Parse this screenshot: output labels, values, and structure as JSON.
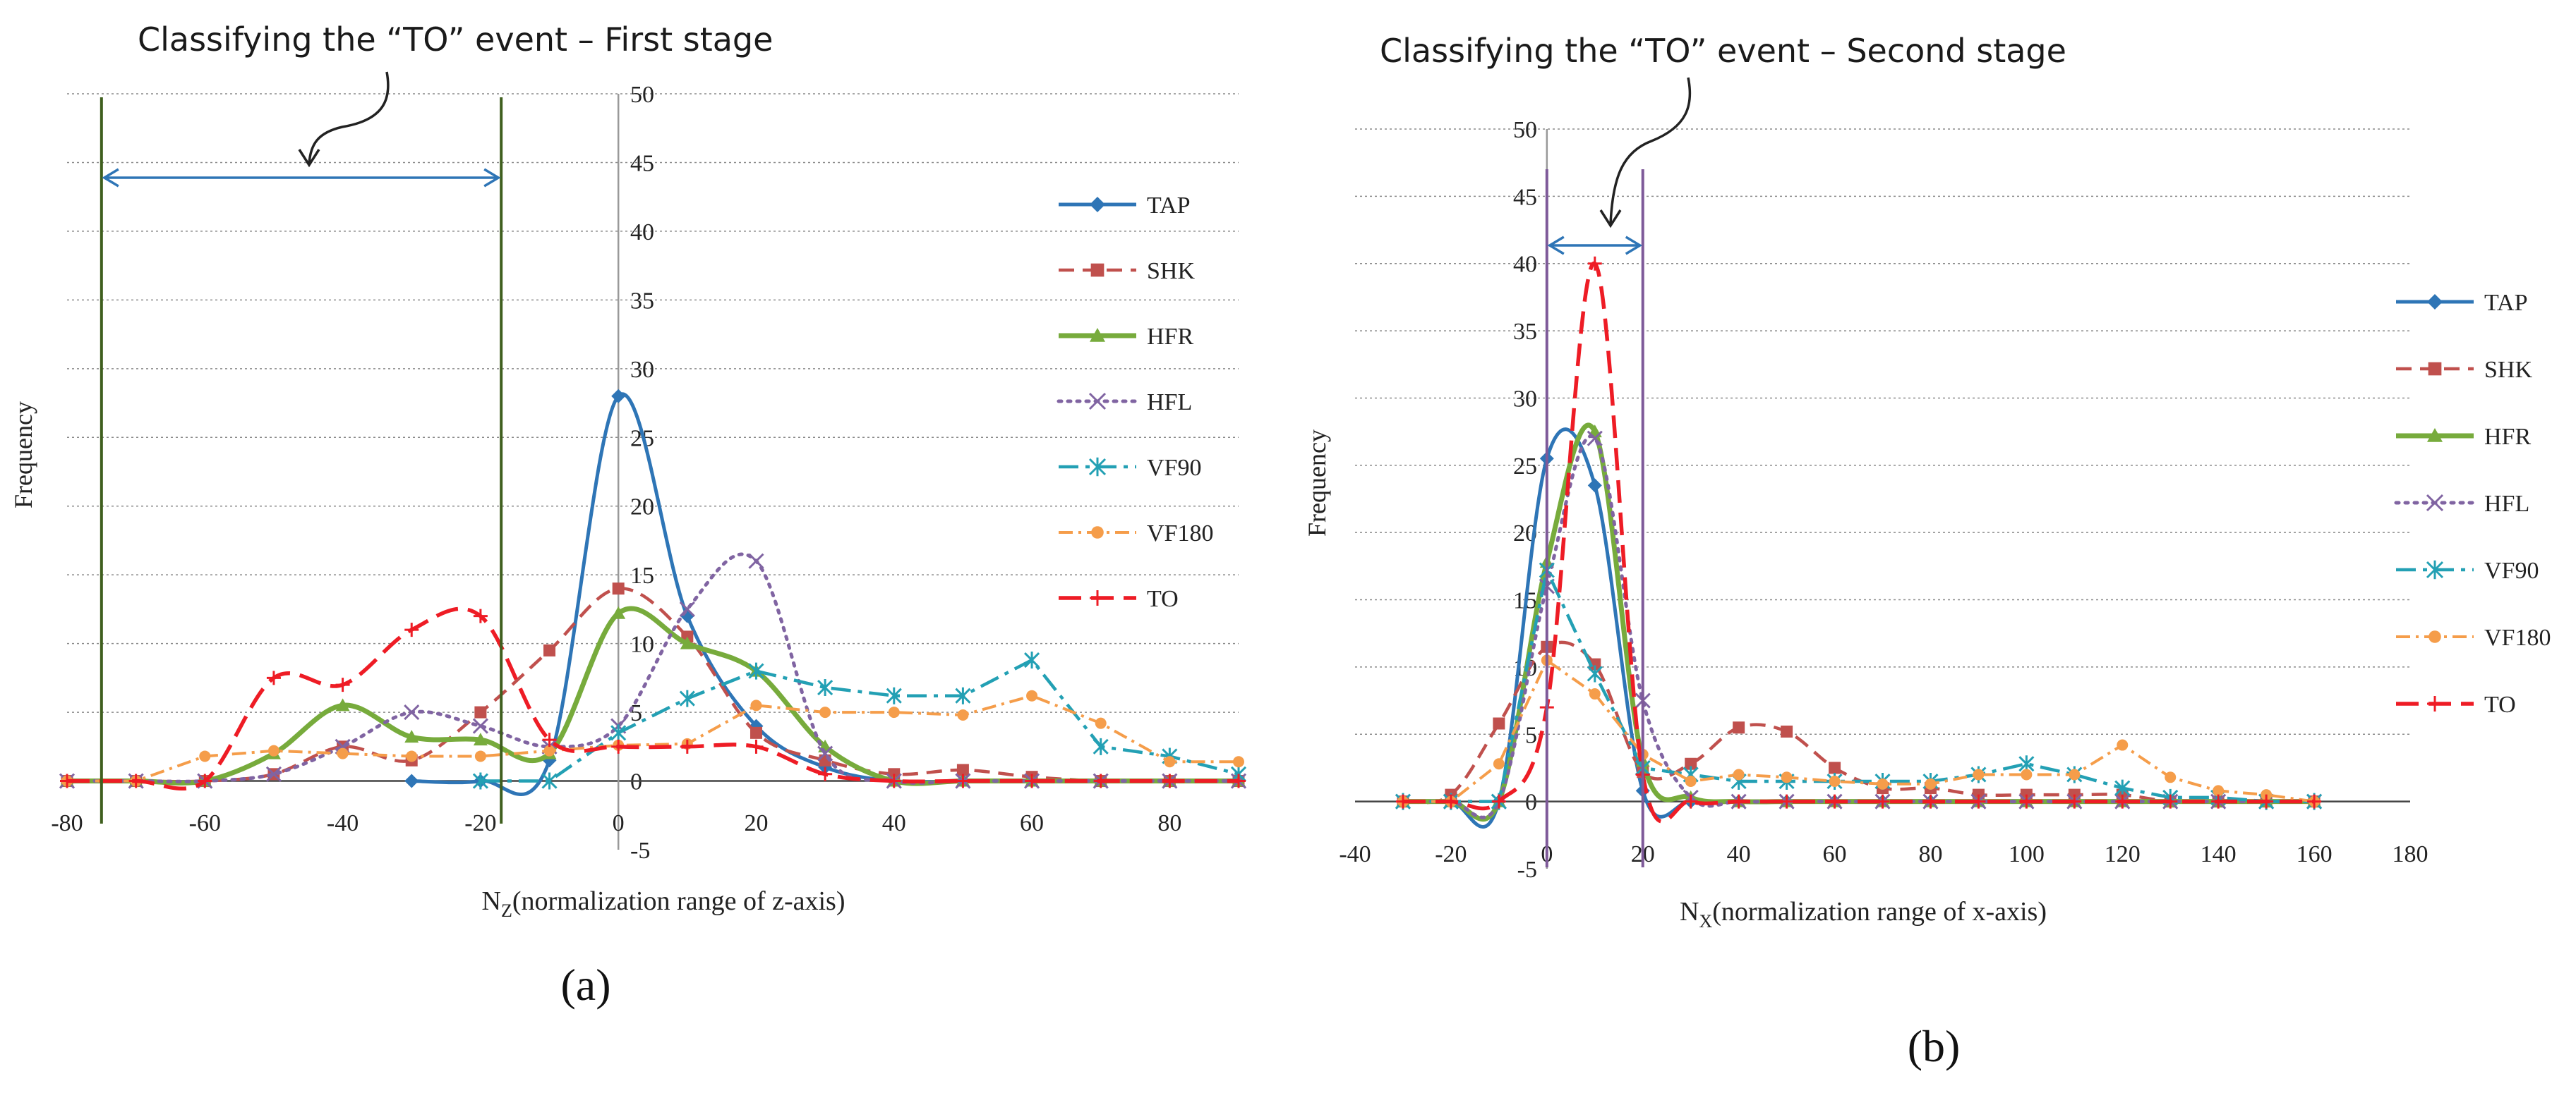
{
  "figure": {
    "panel_a_label": "(a)",
    "panel_b_label": "(b)",
    "stage_a_annotation": "Classifying the “TO” event – First stage",
    "stage_b_annotation": "Classifying the “TO” event – Second stage"
  },
  "colors": {
    "TAP": "#2e75b6",
    "SHK": "#c0504d",
    "HFR": "#77ab3c",
    "HFL": "#8064a2",
    "VF90": "#23a0b4",
    "VF180": "#f59d4a",
    "TO": "#ee1c25",
    "bracket_a": "#3f5f1e",
    "bracket_b": "#7e5a99",
    "arrow": "#2e75b6"
  },
  "chart_data": [
    {
      "type": "line",
      "panel": "(a)",
      "title": "Classifying the “TO” event – First stage",
      "xlabel": "N",
      "xlabel_sub": "Z",
      "xlabel_rest": "(normalization range of z-axis)",
      "ylabel": "Frequency",
      "xlim": [
        -80,
        90
      ],
      "ylim": [
        -5,
        50
      ],
      "x_ticks": [
        -80,
        -60,
        -40,
        -20,
        0,
        20,
        40,
        60,
        80
      ],
      "y_ticks": [
        -5,
        0,
        5,
        10,
        15,
        20,
        25,
        30,
        35,
        40,
        45,
        50
      ],
      "grid": true,
      "legend_position": "right",
      "x": [
        -80,
        -70,
        -60,
        -50,
        -40,
        -30,
        -20,
        -10,
        0,
        10,
        20,
        30,
        40,
        50,
        60,
        70,
        80,
        90
      ],
      "series": [
        {
          "name": "TAP",
          "values": [
            null,
            null,
            null,
            null,
            null,
            0,
            0,
            1.5,
            28,
            12,
            4,
            1,
            0,
            0,
            0,
            0,
            0,
            0
          ]
        },
        {
          "name": "SHK",
          "values": [
            0,
            0,
            0,
            0.5,
            2.5,
            1.5,
            5,
            9.5,
            14,
            10.5,
            3.5,
            1.5,
            0.5,
            0.8,
            0.3,
            0,
            0,
            0
          ]
        },
        {
          "name": "HFR",
          "values": [
            0,
            0,
            0,
            2,
            5.5,
            3.2,
            3,
            2,
            12.2,
            10,
            8,
            2.5,
            0,
            0,
            0,
            0,
            0,
            0
          ]
        },
        {
          "name": "HFL",
          "values": [
            0,
            0,
            0,
            0.5,
            2.5,
            5,
            4,
            2.5,
            4,
            12.5,
            16,
            2,
            0,
            0,
            0,
            0,
            0,
            0
          ]
        },
        {
          "name": "VF90",
          "values": [
            null,
            null,
            null,
            null,
            null,
            null,
            0,
            0,
            3.5,
            6,
            8,
            6.8,
            6.2,
            6.2,
            8.8,
            2.5,
            1.8,
            0.5
          ]
        },
        {
          "name": "VF180",
          "values": [
            0,
            0,
            1.8,
            2.2,
            2,
            1.8,
            1.8,
            2.2,
            2.6,
            2.7,
            5.5,
            5,
            5,
            4.8,
            6.2,
            4.2,
            1.4,
            1.4
          ]
        },
        {
          "name": "TO",
          "values": [
            0,
            0,
            0,
            7.5,
            7,
            11,
            12,
            3,
            2.5,
            2.5,
            2.5,
            0.5,
            0,
            0,
            0,
            0,
            0,
            0
          ]
        }
      ],
      "annotation_bracket": [
        -75,
        -17
      ]
    },
    {
      "type": "line",
      "panel": "(b)",
      "title": "Classifying the “TO” event – Second stage",
      "xlabel": "N",
      "xlabel_sub": "X",
      "xlabel_rest": "(normalization range of x-axis)",
      "ylabel": "Frequency",
      "xlim": [
        -40,
        180
      ],
      "ylim": [
        -5,
        50
      ],
      "x_ticks": [
        -40,
        -20,
        0,
        20,
        40,
        60,
        80,
        100,
        120,
        140,
        160,
        180
      ],
      "y_ticks": [
        -5,
        0,
        5,
        10,
        15,
        20,
        25,
        30,
        35,
        40,
        45,
        50
      ],
      "grid": true,
      "legend_position": "right",
      "x": [
        -30,
        -20,
        -10,
        0,
        10,
        20,
        30,
        40,
        50,
        60,
        70,
        80,
        90,
        100,
        110,
        120,
        130,
        140,
        150,
        160
      ],
      "series": [
        {
          "name": "TAP",
          "values": [
            0,
            0,
            0,
            25.5,
            23.5,
            0.8,
            0,
            0,
            0,
            0,
            0,
            0,
            0,
            0,
            0,
            0,
            0,
            0,
            0,
            0
          ]
        },
        {
          "name": "SHK",
          "values": [
            0,
            0.5,
            5.8,
            11.5,
            10.2,
            2.2,
            2.8,
            5.5,
            5.2,
            2.5,
            1,
            1,
            0.5,
            0.5,
            0.5,
            0.5,
            0,
            0,
            0,
            0
          ]
        },
        {
          "name": "HFR",
          "values": [
            0,
            0,
            0,
            17.8,
            27.5,
            3,
            0.3,
            0,
            0,
            0,
            0,
            0,
            0,
            0,
            0,
            0,
            0,
            0,
            0,
            0
          ]
        },
        {
          "name": "HFL",
          "values": [
            0,
            0,
            0,
            16,
            27,
            7.5,
            0.3,
            0,
            0,
            0,
            0,
            0,
            0,
            0,
            0,
            0,
            0,
            0,
            0,
            0
          ]
        },
        {
          "name": "VF90",
          "values": [
            0,
            0,
            0,
            17.2,
            9.5,
            2.5,
            2,
            1.5,
            1.5,
            1.5,
            1.5,
            1.5,
            2,
            2.8,
            2,
            1,
            0.3,
            0.3,
            0,
            0
          ]
        },
        {
          "name": "VF180",
          "values": [
            0,
            0,
            2.8,
            10.5,
            8,
            3.5,
            1.5,
            2,
            1.8,
            1.5,
            1.3,
            1.3,
            2,
            2,
            2,
            4.2,
            1.8,
            0.8,
            0.5,
            0
          ]
        },
        {
          "name": "TO",
          "values": [
            0,
            0,
            0,
            7,
            40,
            2,
            0,
            0,
            0,
            0,
            0,
            0,
            0,
            0,
            0,
            0,
            0,
            0,
            0,
            0
          ]
        }
      ],
      "annotation_bracket": [
        0,
        20
      ]
    }
  ]
}
